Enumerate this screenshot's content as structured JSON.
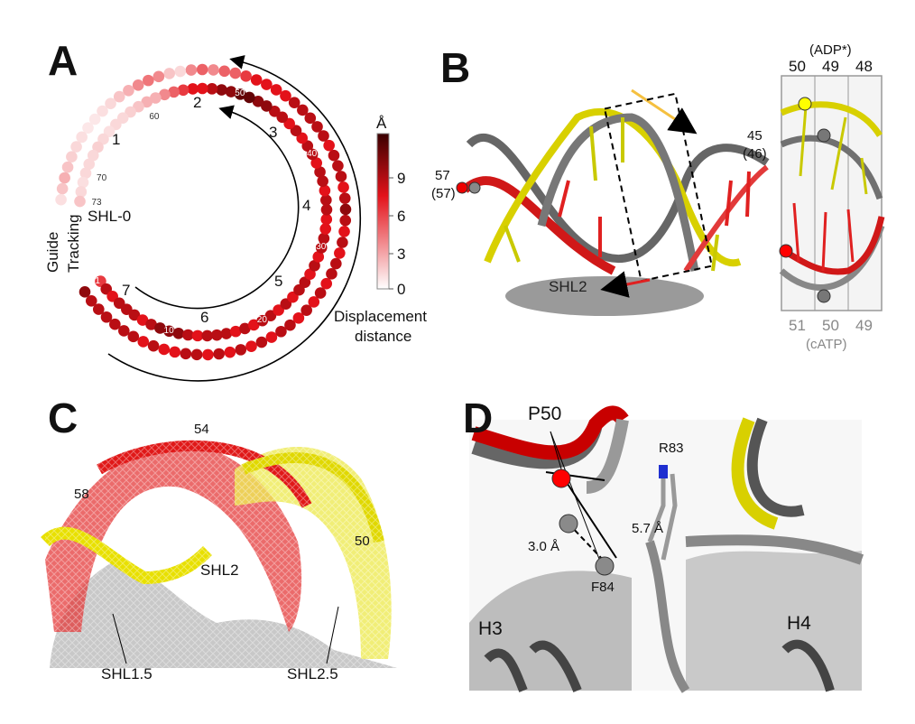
{
  "panels": {
    "a": {
      "letter": "A",
      "ring_labels": {
        "guide": "Guide",
        "tracking": "Tracking"
      },
      "shl_label": "SHL-0",
      "segment_numbers": [
        "1",
        "2",
        "3",
        "4",
        "5",
        "6",
        "7"
      ],
      "position_ticks": [
        "1",
        "10",
        "20",
        "30",
        "40",
        "50",
        "60",
        "70",
        "73"
      ],
      "colorbar": {
        "unit": "Å",
        "ticks": [
          "9",
          "6",
          "3",
          "0"
        ],
        "range": [
          0,
          10
        ],
        "title_line1": "Displacement",
        "title_line2": "distance",
        "colors": [
          "#ffffff",
          "#e3121a",
          "#3a0000"
        ]
      },
      "tracking_values": [
        5,
        7,
        6,
        7,
        7,
        7,
        6,
        7,
        8,
        8,
        8,
        7,
        6,
        7,
        7,
        7,
        6,
        7,
        6,
        7,
        7,
        6,
        7,
        6,
        7,
        7,
        6,
        7,
        6,
        7,
        7,
        6,
        6,
        7,
        7,
        6,
        7,
        7,
        6,
        7,
        7,
        6,
        7,
        6,
        7,
        7,
        8,
        8,
        9,
        9,
        8,
        8,
        7,
        6,
        6,
        5,
        4,
        3,
        2,
        2,
        1.5,
        1.2,
        1,
        1,
        0.8,
        1,
        1.2,
        1,
        1,
        1,
        0.8,
        1,
        1.5
      ],
      "guide_values": [
        8,
        7,
        7,
        7,
        7,
        7,
        7,
        6,
        7,
        6,
        6,
        7,
        7,
        6,
        7,
        6,
        7,
        6,
        7,
        6,
        7,
        7,
        6,
        7,
        6,
        7,
        6,
        7,
        7,
        6,
        7,
        6,
        7,
        8,
        7,
        6,
        7,
        7,
        7,
        6,
        7,
        7,
        7,
        7,
        7,
        6,
        6,
        6,
        6,
        5,
        4,
        4,
        3,
        4,
        3,
        1,
        1.5,
        3,
        3.5,
        3,
        2,
        1.5,
        1,
        0.8,
        0.6,
        0.6,
        0.8,
        1,
        1.2,
        1.5,
        2,
        1.5,
        0.8
      ]
    },
    "b": {
      "letter": "B",
      "label_57": "57",
      "label_57b": "(57)",
      "label_45": "45",
      "label_46": "(46)",
      "shl_label": "SHL2",
      "inset_top_title": "(ADP*)",
      "inset_top": [
        "50",
        "49",
        "48"
      ],
      "inset_bottom": [
        "51",
        "50",
        "49"
      ],
      "inset_bottom_title": "(cATP)"
    },
    "c": {
      "letter": "C",
      "labels": {
        "n54": "54",
        "n58": "58",
        "n50": "50",
        "shl2": "SHL2",
        "shl15": "SHL1.5",
        "shl25": "SHL2.5"
      }
    },
    "d": {
      "letter": "D",
      "labels": {
        "p50": "P50",
        "r83": "R83",
        "d57": "5.7 Å",
        "d30": "3.0 Å",
        "f84": "F84",
        "h3": "H3",
        "h4": "H4"
      }
    }
  }
}
